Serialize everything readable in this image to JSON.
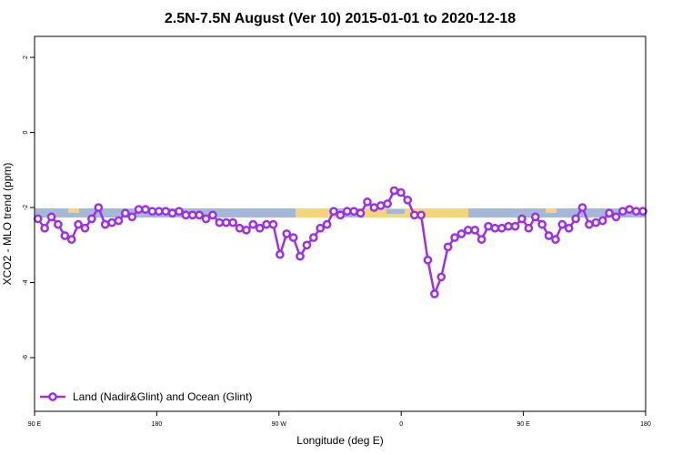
{
  "chart_data": {
    "type": "line",
    "title": "2.5N-7.5N August (Ver 10)   2015-01-01 to 2020-12-18",
    "x_label": "Longitude (deg E)",
    "y_label": "XCO2 - MLO trend (ppm)",
    "xlim": [
      90,
      540
    ],
    "xticks": [
      {
        "value": 90,
        "label": "90 E"
      },
      {
        "value": 180,
        "label": "180"
      },
      {
        "value": 270,
        "label": "90 W"
      },
      {
        "value": 360,
        "label": "0"
      },
      {
        "value": 450,
        "label": "90 E"
      },
      {
        "value": 540,
        "label": "180"
      }
    ],
    "ylim": [
      -7.43,
      2.56
    ],
    "yticks": [
      2,
      0,
      -2,
      -4,
      -6
    ],
    "legend_position": "bottom-left",
    "x": [
      92.5,
      97.45,
      102.4,
      107.35,
      112.3,
      117.25,
      122.2,
      127.15,
      132.1,
      137.05,
      142,
      146.95,
      151.9,
      156.85,
      161.8,
      166.75,
      171.7,
      176.65,
      181.6,
      186.55,
      191.5,
      196.45,
      201.4,
      206.35,
      211.3,
      216.25,
      221.2,
      226.15,
      231.1,
      236.05,
      241,
      245.95,
      250.9,
      255.85,
      260.8,
      265.75,
      270.7,
      275.65,
      280.6,
      285.55,
      290.5,
      295.45,
      300.4,
      305.35,
      310.3,
      315.25,
      320.2,
      325.15,
      330.1,
      335.05,
      340,
      344.95,
      349.9,
      354.85,
      359.8,
      364.75,
      369.7,
      374.65,
      379.6,
      384.55,
      389.5,
      394.45,
      399.4,
      404.35,
      409.3,
      414.25,
      419.2,
      424.15,
      429.1,
      434.05,
      439,
      443.95,
      448.9,
      453.85,
      458.8,
      463.75,
      468.7,
      473.65,
      478.6,
      483.55,
      488.5,
      493.45,
      498.4,
      503.35,
      508.3,
      513.25,
      518.2,
      523.15,
      528.1,
      533.05,
      538
    ],
    "series": [
      {
        "name": "Land (Nadir&Glint) and Ocean (Glint)",
        "color": "#9b30e8",
        "values": [
          -2.3,
          -2.55,
          -2.25,
          -2.45,
          -2.75,
          -2.85,
          -2.45,
          -2.55,
          -2.3,
          -2.0,
          -2.45,
          -2.4,
          -2.35,
          -2.15,
          -2.25,
          -2.05,
          -2.05,
          -2.1,
          -2.1,
          -2.1,
          -2.15,
          -2.1,
          -2.2,
          -2.2,
          -2.2,
          -2.3,
          -2.2,
          -2.4,
          -2.4,
          -2.4,
          -2.55,
          -2.6,
          -2.45,
          -2.55,
          -2.45,
          -2.45,
          -3.25,
          -2.7,
          -2.8,
          -3.3,
          -3.0,
          -2.8,
          -2.55,
          -2.45,
          -2.1,
          -2.2,
          -2.1,
          -2.1,
          -2.15,
          -1.85,
          -2.0,
          -1.95,
          -1.9,
          -1.55,
          -1.6,
          -1.8,
          -2.2,
          -2.2,
          -3.4,
          -4.3,
          -3.85,
          -3.05,
          -2.8,
          -2.7,
          -2.6,
          -2.6,
          -2.85,
          -2.5,
          -2.55,
          -2.55,
          -2.5,
          -2.5,
          -2.3,
          -2.55,
          -2.25,
          -2.45,
          -2.75,
          -2.85,
          -2.45,
          -2.55,
          -2.3,
          -2.0,
          -2.45,
          -2.4,
          -2.35,
          -2.15,
          -2.25,
          -2.1,
          -2.05,
          -2.1,
          -2.1
        ]
      }
    ]
  }
}
